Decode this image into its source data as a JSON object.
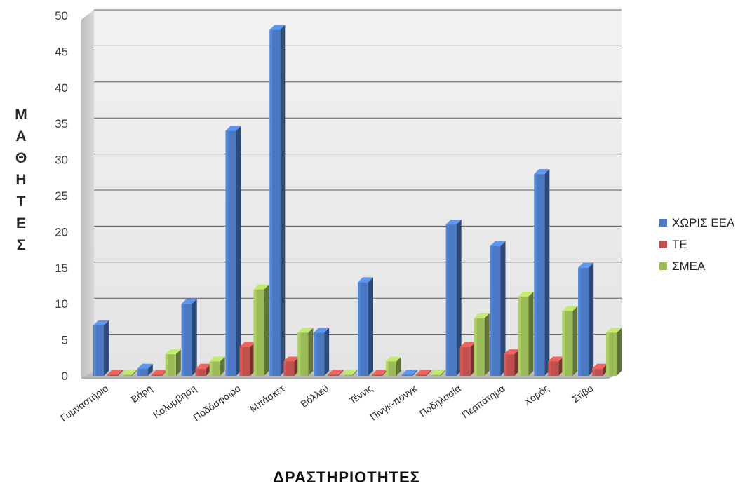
{
  "chart_data": {
    "type": "bar",
    "xlabel": "ΔΡΑΣΤΗΡΙΟΤΗΤΕΣ",
    "ylabel": "ΜΑΘΗΤΕΣ",
    "ylim": [
      0,
      50
    ],
    "yticks": [
      0,
      5,
      10,
      15,
      20,
      25,
      30,
      35,
      40,
      45,
      50
    ],
    "grid": true,
    "legend": "right",
    "categories": [
      "Γυμναστήριο",
      "Βάρη",
      "Κολύμβηση",
      "Ποδόσφαιρο",
      "Μπάσκετ",
      "Βόλλεϋ",
      "Τέννις",
      "Πινγκ-πονγκ",
      "Ποδηλασία",
      "Περπάτημα",
      "Χορός",
      "Στίβο"
    ],
    "series": [
      {
        "name": "ΧΩΡΙΣ ΕΕΑ",
        "color": "#4a78c2",
        "values": [
          7,
          1,
          10,
          34,
          48,
          6,
          13,
          0,
          21,
          18,
          28,
          15
        ]
      },
      {
        "name": "ΤΕ",
        "color": "#c0504d",
        "values": [
          0,
          0,
          1,
          4,
          2,
          0,
          0,
          0,
          4,
          3,
          2,
          1
        ]
      },
      {
        "name": "ΣΜΕΑ",
        "color": "#9bbb59",
        "values": [
          0,
          3,
          2,
          12,
          6,
          0,
          2,
          0,
          8,
          11,
          9,
          6
        ]
      }
    ]
  }
}
